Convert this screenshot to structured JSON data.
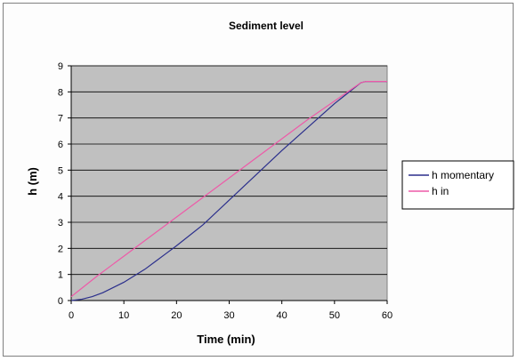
{
  "chart_data": {
    "type": "line",
    "title": "Sediment level",
    "xlabel": "Time (min)",
    "ylabel": "h (m)",
    "xlim": [
      0,
      60
    ],
    "ylim": [
      0,
      9
    ],
    "xticks": [
      0,
      10,
      20,
      30,
      40,
      50,
      60
    ],
    "yticks": [
      0,
      1,
      2,
      3,
      4,
      5,
      6,
      7,
      8,
      9
    ],
    "grid": "horizontal",
    "legend_position": "right",
    "plot_background": "#c0c0c0",
    "series": [
      {
        "name": "h momentary",
        "color": "#2b2f8c",
        "x": [
          0,
          2,
          4,
          6,
          8,
          10,
          12,
          14,
          16,
          18,
          20,
          25,
          30,
          35,
          40,
          45,
          50,
          55,
          56,
          60
        ],
        "y": [
          0.0,
          0.05,
          0.15,
          0.3,
          0.5,
          0.7,
          0.95,
          1.2,
          1.5,
          1.8,
          2.1,
          2.9,
          3.85,
          4.8,
          5.75,
          6.65,
          7.55,
          8.35,
          8.4,
          8.4
        ]
      },
      {
        "name": "h in",
        "color": "#ee5aa8",
        "x": [
          0,
          5,
          10,
          15,
          20,
          25,
          30,
          35,
          40,
          45,
          50,
          55,
          56,
          60
        ],
        "y": [
          0.15,
          0.95,
          1.7,
          2.45,
          3.2,
          3.95,
          4.7,
          5.45,
          6.2,
          6.95,
          7.65,
          8.35,
          8.4,
          8.4
        ]
      }
    ]
  }
}
